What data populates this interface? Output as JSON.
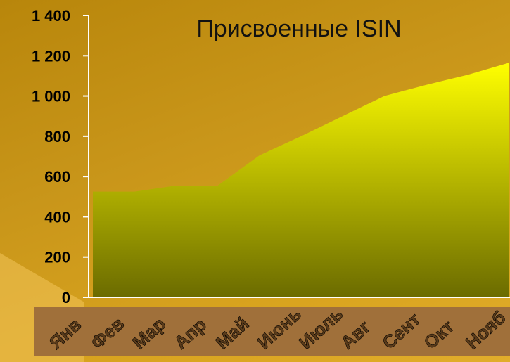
{
  "chart_data": {
    "type": "area",
    "title": "Присвоенные ISIN",
    "categories": [
      "Янв",
      "Фев",
      "Мар",
      "Апр",
      "Май",
      "Июнь",
      "Июль",
      "Авг",
      "Сент",
      "Окт",
      "Нояб"
    ],
    "values": [
      525,
      525,
      555,
      555,
      705,
      800,
      900,
      1000,
      1055,
      1105,
      1165
    ],
    "ytick_labels": [
      "0",
      "200",
      "400",
      "600",
      "800",
      "1 000",
      "1 200",
      "1 400"
    ],
    "ylim": [
      0,
      1400
    ],
    "xlabel": "",
    "ylabel": "",
    "grid": false,
    "colors": {
      "area_top": "#ffff00",
      "area_bottom": "#6b6b00",
      "tick_box": "#a0703a",
      "axis": "#ffffff"
    }
  }
}
